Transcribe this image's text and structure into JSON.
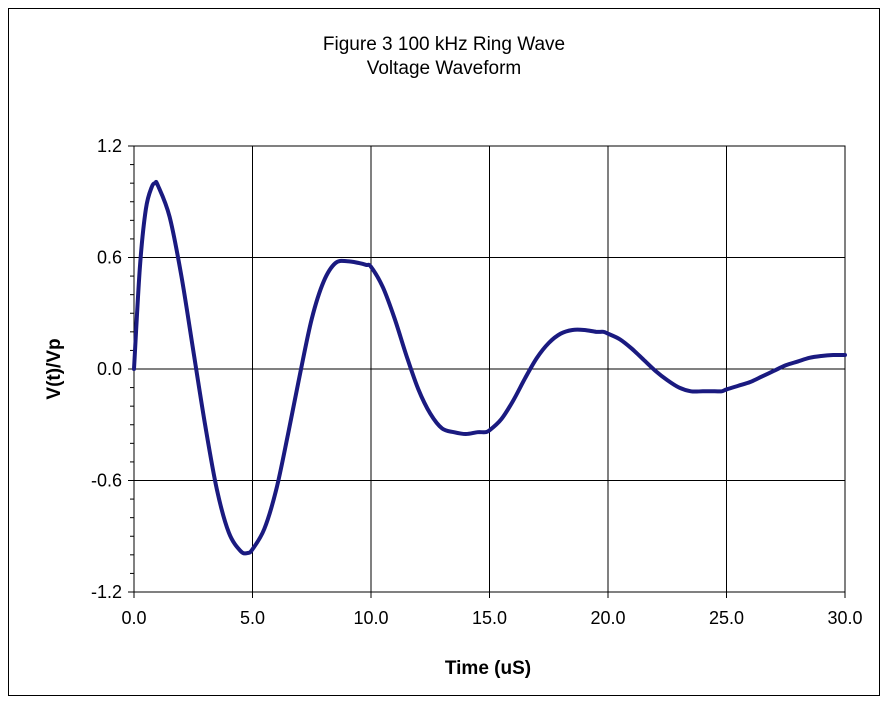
{
  "chart_data": {
    "type": "line",
    "title": "Figure 3 100 kHz Ring Wave",
    "subtitle": "Voltage Waveform",
    "xlabel": "Time (uS)",
    "ylabel": "V(t)/Vp",
    "xlim": [
      0,
      30
    ],
    "ylim": [
      -1.2,
      1.2
    ],
    "x_ticks": [
      "0.0",
      "5.0",
      "10.0",
      "15.0",
      "20.0",
      "25.0",
      "30.0"
    ],
    "y_ticks": [
      "1.2",
      "0.6",
      "0.0",
      "-0.6",
      "-1.2"
    ],
    "grid": true,
    "line_color": "#1a1a80",
    "series": [
      {
        "x": [
          0,
          0.25,
          0.5,
          0.75,
          0.9,
          1.0,
          1.5,
          2.0,
          2.5,
          3.0,
          3.5,
          4.0,
          4.5,
          4.8,
          5.0,
          5.5,
          6.0,
          6.5,
          7.0,
          7.5,
          8.0,
          8.5,
          9.0,
          9.5,
          9.8,
          10.0,
          10.5,
          11.0,
          11.5,
          12.0,
          12.5,
          13.0,
          13.5,
          14.0,
          14.5,
          14.8,
          15.0,
          15.5,
          16.0,
          16.5,
          17.0,
          17.5,
          18.0,
          18.5,
          19.0,
          19.5,
          19.8,
          20.0,
          20.5,
          21.0,
          21.5,
          22.0,
          22.5,
          23.0,
          23.5,
          24.0,
          24.5,
          24.8,
          25.0,
          25.5,
          26.0,
          26.5,
          27.0,
          27.5,
          28.0,
          28.5,
          29.0,
          29.5,
          30.0
        ],
        "y": [
          0.0,
          0.55,
          0.86,
          0.98,
          1.0,
          0.99,
          0.82,
          0.5,
          0.1,
          -0.3,
          -0.65,
          -0.88,
          -0.98,
          -0.99,
          -0.97,
          -0.86,
          -0.65,
          -0.35,
          -0.03,
          0.27,
          0.47,
          0.57,
          0.58,
          0.57,
          0.56,
          0.55,
          0.44,
          0.27,
          0.07,
          -0.11,
          -0.24,
          -0.32,
          -0.34,
          -0.35,
          -0.34,
          -0.34,
          -0.33,
          -0.27,
          -0.17,
          -0.05,
          0.06,
          0.14,
          0.19,
          0.21,
          0.21,
          0.2,
          0.2,
          0.19,
          0.16,
          0.11,
          0.05,
          -0.01,
          -0.06,
          -0.1,
          -0.12,
          -0.12,
          -0.12,
          -0.12,
          -0.11,
          -0.09,
          -0.07,
          -0.04,
          -0.01,
          0.02,
          0.04,
          0.06,
          0.07,
          0.075,
          0.075
        ]
      }
    ]
  }
}
